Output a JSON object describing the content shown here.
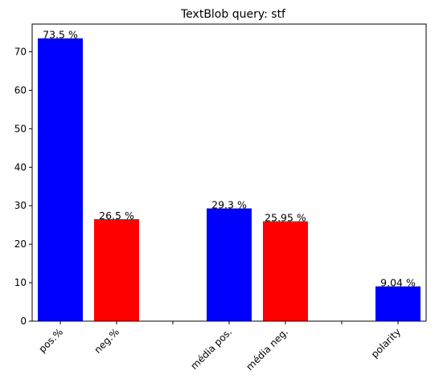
{
  "chart_data": {
    "type": "bar",
    "title": "TextBlob query: stf",
    "xlabel": "",
    "ylabel": "",
    "categories": [
      "pos.%",
      "neg.%",
      "",
      "média pos.",
      "média neg.",
      "",
      "polarity"
    ],
    "values": [
      73.5,
      26.5,
      null,
      29.3,
      25.95,
      null,
      9.04
    ],
    "data_labels": [
      "73.5 %",
      "26.5 %",
      "",
      "29.3 %",
      "25.95 %",
      "",
      "9.04 %"
    ],
    "bar_colors": [
      "#0000ff",
      "#ff0000",
      null,
      "#0000ff",
      "#ff0000",
      null,
      "#0000ff"
    ],
    "yticks": [
      0,
      10,
      20,
      30,
      40,
      50,
      60,
      70
    ],
    "ylim": [
      0,
      77.2
    ],
    "grid": false,
    "legend": "none"
  }
}
